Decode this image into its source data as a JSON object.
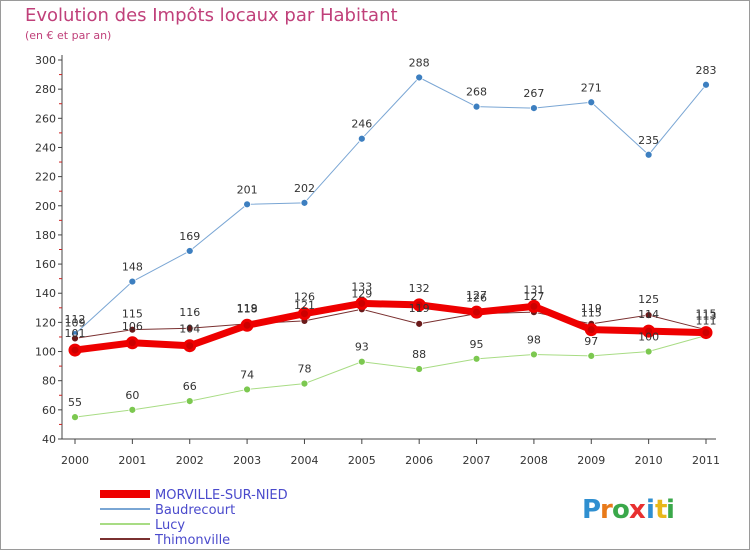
{
  "title": "Evolution des Impôts locaux par Habitant",
  "subtitle": "(en € et par an)",
  "logo": "Proxiti",
  "chart_data": {
    "type": "line",
    "x": [
      "2000",
      "2001",
      "2002",
      "2003",
      "2004",
      "2005",
      "2006",
      "2007",
      "2008",
      "2009",
      "2010",
      "2011"
    ],
    "ylim": [
      40,
      300
    ],
    "yticks": [
      40,
      60,
      80,
      100,
      120,
      140,
      160,
      180,
      200,
      220,
      240,
      260,
      280,
      300
    ],
    "grid": false,
    "legend": "bottom-left",
    "series": [
      {
        "name": "Baudrecourt",
        "color": "#7aa6d4",
        "marker": "#3d7fc0",
        "width": 1,
        "values": [
          112,
          148,
          169,
          201,
          202,
          246,
          288,
          268,
          267,
          271,
          235,
          283
        ]
      },
      {
        "name": "Lucy",
        "color": "#a8dc84",
        "marker": "#7cc850",
        "width": 1,
        "values": [
          55,
          60,
          66,
          74,
          78,
          93,
          88,
          95,
          98,
          97,
          100,
          111
        ]
      },
      {
        "name": "Thimonville",
        "color": "#7a3030",
        "marker": "#6a1a1a",
        "width": 1,
        "values": [
          109,
          115,
          116,
          119,
          121,
          129,
          119,
          126,
          127,
          119,
          125,
          115
        ]
      },
      {
        "name": "MORVILLE-SUR-NIED",
        "color": "#ee0000",
        "marker": "#cc0000",
        "width": 7,
        "values": [
          101,
          106,
          104,
          118,
          126,
          133,
          132,
          127,
          131,
          115,
          114,
          113
        ]
      }
    ],
    "legend_order": [
      "MORVILLE-SUR-NIED",
      "Baudrecourt",
      "Lucy",
      "Thimonville"
    ]
  }
}
